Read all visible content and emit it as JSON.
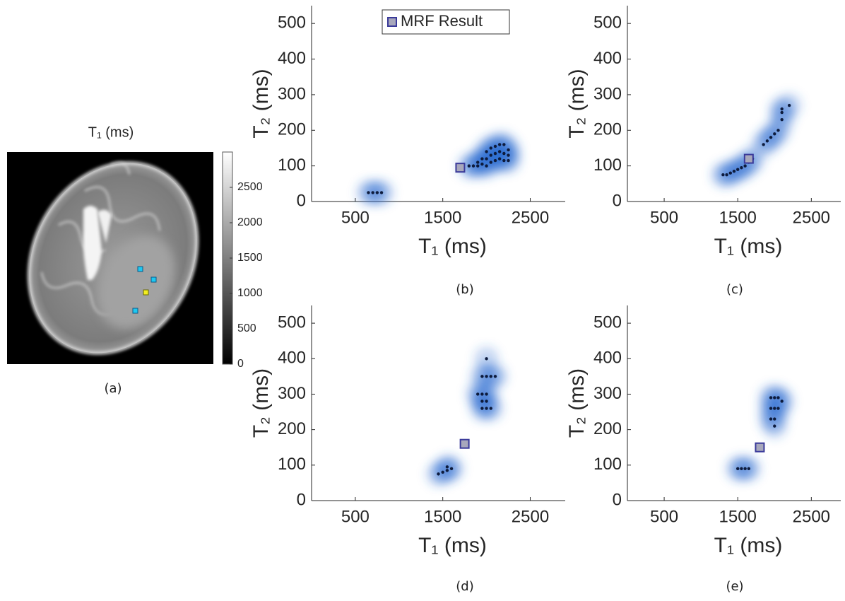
{
  "chart_data": [
    {
      "type": "image",
      "title": "T₁ (ms)",
      "caption": "(a)",
      "colormap": "gray",
      "clim": [
        0,
        3000
      ],
      "cticks": [
        0,
        500,
        1000,
        1500,
        2000,
        2500
      ]
    },
    {
      "type": "scatter",
      "caption": "(b)",
      "xlabel": "T₁ (ms)",
      "ylabel": "T₂ (ms)",
      "xlim": [
        0,
        2900
      ],
      "ylim": [
        0,
        550
      ],
      "xticks": [
        500,
        1500,
        2500
      ],
      "yticks": [
        0,
        100,
        200,
        300,
        400,
        500
      ],
      "halo_color": "#2a6bd0",
      "legend": "upper left",
      "series": [
        {
          "color": "#0d1b3d",
          "x": [
            650,
            700,
            750,
            800,
            1800,
            1850,
            1900,
            1900,
            1950,
            1950,
            2000,
            2000,
            2000,
            2050,
            2050,
            2050,
            2100,
            2100,
            2100,
            2150,
            2150,
            2150,
            2200,
            2200,
            2200,
            2250,
            2250,
            2250
          ],
          "y": [
            25,
            25,
            25,
            25,
            100,
            100,
            100,
            110,
            105,
            120,
            100,
            120,
            140,
            110,
            130,
            150,
            115,
            135,
            155,
            120,
            140,
            160,
            115,
            135,
            160,
            115,
            130,
            145
          ]
        },
        {
          "name": "MRF Result",
          "color": "#a8a8bc",
          "marker": "square",
          "x": [
            1700
          ],
          "y": [
            95
          ]
        }
      ]
    },
    {
      "type": "scatter",
      "caption": "(c)",
      "xlabel": "T₁ (ms)",
      "ylabel": "T₂ (ms)",
      "xlim": [
        0,
        2900
      ],
      "ylim": [
        0,
        550
      ],
      "xticks": [
        500,
        1500,
        2500
      ],
      "yticks": [
        0,
        100,
        200,
        300,
        400,
        500
      ],
      "halo_color": "#2a6bd0",
      "series": [
        {
          "color": "#0d1b3d",
          "x": [
            1300,
            1350,
            1400,
            1450,
            1500,
            1550,
            1600,
            1650,
            1700,
            1850,
            1900,
            1950,
            2000,
            2050,
            2100,
            2100,
            2100,
            2200
          ],
          "y": [
            75,
            75,
            80,
            85,
            90,
            95,
            100,
            110,
            120,
            160,
            170,
            180,
            190,
            200,
            230,
            250,
            260,
            270
          ]
        },
        {
          "color": "#a8a8bc",
          "marker": "square",
          "x": [
            1650
          ],
          "y": [
            120
          ]
        }
      ]
    },
    {
      "type": "scatter",
      "caption": "(d)",
      "xlabel": "T₁ (ms)",
      "ylabel": "T₂ (ms)",
      "xlim": [
        0,
        2900
      ],
      "ylim": [
        0,
        550
      ],
      "xticks": [
        500,
        1500,
        2500
      ],
      "yticks": [
        0,
        100,
        200,
        300,
        400,
        500
      ],
      "halo_color": "#2a6bd0",
      "series": [
        {
          "color": "#0d1b3d",
          "x": [
            1450,
            1500,
            1550,
            1600,
            1550,
            1900,
            1950,
            2000,
            1950,
            2000,
            1950,
            2000,
            2050,
            1950,
            2000,
            2050,
            2100,
            2000
          ],
          "y": [
            75,
            80,
            85,
            90,
            95,
            300,
            300,
            300,
            280,
            280,
            260,
            260,
            260,
            350,
            350,
            350,
            350,
            400
          ]
        },
        {
          "color": "#a8a8bc",
          "marker": "square",
          "x": [
            1750
          ],
          "y": [
            160
          ]
        }
      ]
    },
    {
      "type": "scatter",
      "caption": "(e)",
      "xlabel": "T₁ (ms)",
      "ylabel": "T₂ (ms)",
      "xlim": [
        0,
        2900
      ],
      "ylim": [
        0,
        550
      ],
      "xticks": [
        500,
        1500,
        2500
      ],
      "yticks": [
        0,
        100,
        200,
        300,
        400,
        500
      ],
      "halo_color": "#2a6bd0",
      "series": [
        {
          "color": "#0d1b3d",
          "x": [
            1500,
            1550,
            1600,
            1650,
            1950,
            2000,
            2050,
            1950,
            2000,
            2050,
            1950,
            2000,
            2000,
            2100
          ],
          "y": [
            90,
            90,
            90,
            90,
            290,
            290,
            290,
            260,
            260,
            260,
            230,
            230,
            210,
            280
          ]
        },
        {
          "color": "#a8a8bc",
          "marker": "square",
          "x": [
            1800
          ],
          "y": [
            150
          ]
        }
      ]
    }
  ]
}
